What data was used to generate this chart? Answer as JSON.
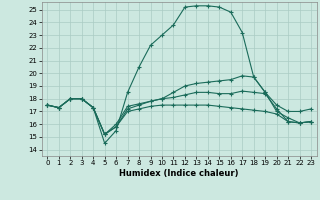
{
  "xlabel": "Humidex (Indice chaleur)",
  "bg_color": "#cce8e0",
  "line_color": "#1a6b5a",
  "grid_color": "#aaccc4",
  "xlim": [
    -0.5,
    23.5
  ],
  "ylim": [
    13.5,
    25.6
  ],
  "yticks": [
    14,
    15,
    16,
    17,
    18,
    19,
    20,
    21,
    22,
    23,
    24,
    25
  ],
  "xticks": [
    0,
    1,
    2,
    3,
    4,
    5,
    6,
    7,
    8,
    9,
    10,
    11,
    12,
    13,
    14,
    15,
    16,
    17,
    18,
    19,
    20,
    21,
    22,
    23
  ],
  "line1_x": [
    0,
    1,
    2,
    3,
    4,
    5,
    6,
    7,
    8,
    9,
    10,
    11,
    12,
    13,
    14,
    15,
    16,
    17,
    18,
    19,
    20,
    21,
    22,
    23
  ],
  "line1_y": [
    17.5,
    17.3,
    18.0,
    18.0,
    17.3,
    14.5,
    15.5,
    18.5,
    20.5,
    22.2,
    23.0,
    23.8,
    25.2,
    25.3,
    25.3,
    25.2,
    24.8,
    23.2,
    19.7,
    18.5,
    17.5,
    17.0,
    17.0,
    17.2
  ],
  "line2_x": [
    0,
    1,
    2,
    3,
    4,
    5,
    6,
    7,
    8,
    9,
    10,
    11,
    12,
    13,
    14,
    15,
    16,
    17,
    18,
    19,
    20,
    21,
    22,
    23
  ],
  "line2_y": [
    17.5,
    17.3,
    18.0,
    18.0,
    17.3,
    15.2,
    16.0,
    17.4,
    17.6,
    17.8,
    18.0,
    18.5,
    19.0,
    19.2,
    19.3,
    19.4,
    19.5,
    19.8,
    19.7,
    18.5,
    17.0,
    16.5,
    16.1,
    16.2
  ],
  "line3_x": [
    0,
    1,
    2,
    3,
    4,
    5,
    6,
    7,
    8,
    9,
    10,
    11,
    12,
    13,
    14,
    15,
    16,
    17,
    18,
    19,
    20,
    21,
    22,
    23
  ],
  "line3_y": [
    17.5,
    17.3,
    18.0,
    18.0,
    17.3,
    15.2,
    15.8,
    17.2,
    17.5,
    17.8,
    18.0,
    18.1,
    18.3,
    18.5,
    18.5,
    18.4,
    18.4,
    18.6,
    18.5,
    18.4,
    17.2,
    16.2,
    16.1,
    16.2
  ],
  "line4_x": [
    0,
    1,
    2,
    3,
    4,
    5,
    6,
    7,
    8,
    9,
    10,
    11,
    12,
    13,
    14,
    15,
    16,
    17,
    18,
    19,
    20,
    21,
    22,
    23
  ],
  "line4_y": [
    17.5,
    17.3,
    18.0,
    18.0,
    17.3,
    15.2,
    15.8,
    17.0,
    17.2,
    17.4,
    17.5,
    17.5,
    17.5,
    17.5,
    17.5,
    17.4,
    17.3,
    17.2,
    17.1,
    17.0,
    16.8,
    16.2,
    16.1,
    16.2
  ]
}
